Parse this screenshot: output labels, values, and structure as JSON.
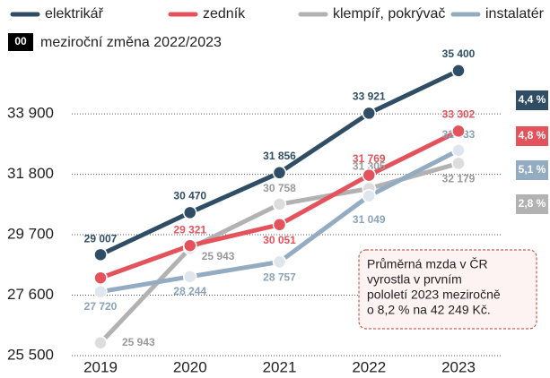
{
  "chart_data": {
    "type": "line",
    "categories": [
      "2019",
      "2020",
      "2021",
      "2022",
      "2023"
    ],
    "series": [
      {
        "name": "elektrikář",
        "color": "#2f4e65",
        "values": [
          29007,
          30470,
          31856,
          33921,
          35400
        ],
        "value_labels": [
          "29 007",
          "30 470",
          "31 856",
          "33 921",
          "35 400"
        ],
        "change": "4,4 %"
      },
      {
        "name": "zedník",
        "color": "#e4525b",
        "values": [
          28200,
          29321,
          30051,
          31769,
          33302
        ],
        "value_labels": [
          null,
          "29 321",
          "30 051",
          "31 769",
          "33 302"
        ],
        "change": "4,8 %"
      },
      {
        "name": "klempíř, pokrývač",
        "color": "#b2b2b2",
        "values": [
          25943,
          29233,
          30758,
          31305,
          32179
        ],
        "value_labels": [
          "25 943",
          null,
          "30 758",
          "31 305",
          "32 179"
        ],
        "change": "2,8 %"
      },
      {
        "name": "instalatér",
        "color": "#93acc2",
        "values": [
          27720,
          28244,
          28757,
          31049,
          32633
        ],
        "value_labels": [
          "27 720",
          "28 244",
          "28 757",
          "31 049",
          "32 633"
        ],
        "change": "5,1 %"
      }
    ],
    "change_legend": {
      "box": "00",
      "text": "meziroční změna 2022/2023"
    },
    "stray_label": "25 943",
    "note": [
      "Průměrná mzda v ČR",
      "vyrostla v prvním",
      "pololetí 2023 meziročně",
      "o 8,2 % na 42 249 Kč."
    ],
    "ylim": [
      25500,
      36300
    ],
    "yticks": [
      {
        "value": 25500,
        "label": "25 500"
      },
      {
        "value": 27600,
        "label": "27 600"
      },
      {
        "value": 29700,
        "label": "29 700"
      },
      {
        "value": 31800,
        "label": "31 800"
      },
      {
        "value": 33900,
        "label": "33 900"
      }
    ],
    "grid": true
  }
}
